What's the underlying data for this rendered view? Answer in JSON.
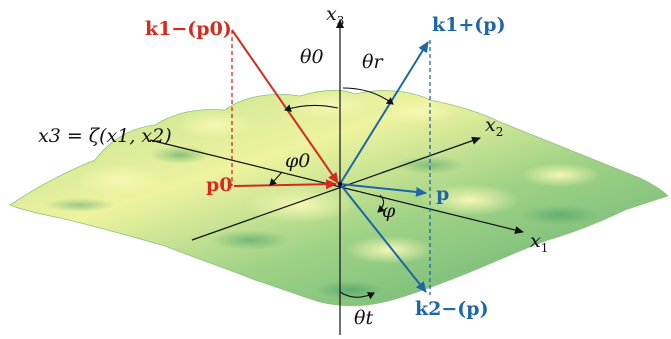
{
  "labels": {
    "x3": "x3",
    "x2": "x2",
    "x1": "x1",
    "surface": "x3 = ζ(x1, x2)",
    "theta0": "θ0",
    "theta_r": "θr",
    "theta_t": "θt",
    "phi0": "φ0",
    "phi": "φ",
    "p0": "p0",
    "p": "p",
    "k1_minus": "k1−(p0)",
    "k1_plus": "k1+(p)",
    "k2_minus": "k2−(p)"
  },
  "colors": {
    "incident": "#d42a1f",
    "scattered": "#1f66a8",
    "axes": "#111111",
    "surface_light": "#f2f5a8",
    "surface_mid": "#b9df8e",
    "surface_dark": "#5fae72"
  }
}
